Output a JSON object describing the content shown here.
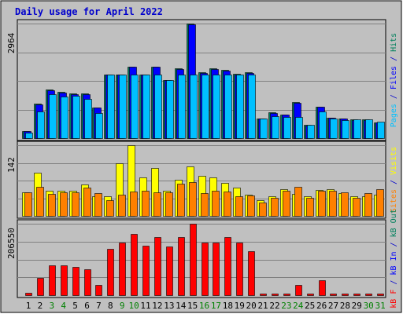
{
  "colors": {
    "frame_bg": "#C0C0C0",
    "panel_bg": "#C0C0C0",
    "grid": "#808080",
    "title": "#0000CC",
    "hits": "#00805C",
    "files": "#0000FF",
    "pages": "#00C0FF",
    "visits": "#FFFF00",
    "sites": "#FF8000",
    "kb_f": "#FF0000",
    "kb_in": "#0000FF",
    "kb_out": "#00805C",
    "day_weekday": "#000000",
    "day_weekend": "#008000"
  },
  "chart_data": {
    "type": "bar",
    "title": "Daily usage for April 2022",
    "x": {
      "values": [
        1,
        2,
        3,
        4,
        5,
        6,
        7,
        8,
        9,
        10,
        11,
        12,
        13,
        14,
        15,
        16,
        17,
        18,
        19,
        20,
        21,
        22,
        23,
        24,
        25,
        26,
        27,
        28,
        29,
        30,
        31
      ],
      "weekend": [
        false,
        false,
        true,
        true,
        false,
        false,
        false,
        false,
        true,
        true,
        false,
        false,
        false,
        false,
        false,
        true,
        true,
        false,
        false,
        false,
        false,
        false,
        true,
        true,
        false,
        false,
        false,
        false,
        false,
        true,
        true
      ]
    },
    "panels": [
      {
        "name": "usage",
        "ymax_label": "2964",
        "ymax": 2964,
        "right_labels": [
          {
            "text": "Pages",
            "color_key": "pages"
          },
          {
            "text": " / ",
            "color_key": "title"
          },
          {
            "text": "Files",
            "color_key": "files"
          },
          {
            "text": " / ",
            "color_key": "title"
          },
          {
            "text": "Hits",
            "color_key": "hits"
          }
        ],
        "series": [
          {
            "name": "Hits",
            "color_key": "hits",
            "values": [
              185,
              900,
              1250,
              1200,
              1150,
              1150,
              800,
              1650,
              1650,
              1850,
              1650,
              1850,
              1500,
              1800,
              2964,
              1700,
              1800,
              1760,
              1660,
              1700,
              510,
              660,
              610,
              930,
              340,
              820,
              530,
              510,
              480,
              480,
              410
            ]
          },
          {
            "name": "Files",
            "color_key": "files",
            "values": [
              180,
              880,
              1240,
              1180,
              1140,
              1140,
              790,
              1640,
              1640,
              1840,
              1640,
              1840,
              1500,
              1790,
              2950,
              1690,
              1790,
              1750,
              1650,
              1690,
              500,
              650,
              600,
              910,
              330,
              810,
              520,
              500,
              470,
              470,
              400
            ]
          },
          {
            "name": "Pages",
            "color_key": "pages",
            "values": [
              135,
              700,
              1130,
              1080,
              1090,
              1020,
              640,
              1640,
              1640,
              1640,
              1640,
              1640,
              1500,
              1640,
              1640,
              1640,
              1640,
              1640,
              1640,
              1640,
              500,
              570,
              550,
              540,
              340,
              690,
              500,
              470,
              480,
              480,
              420
            ]
          }
        ]
      },
      {
        "name": "visitors",
        "ymax_label": "142",
        "ymax": 142,
        "right_labels": [
          {
            "text": "Sites",
            "color_key": "sites"
          },
          {
            "text": " / ",
            "color_key": "title"
          },
          {
            "text": "Visits",
            "color_key": "visits"
          }
        ],
        "series": [
          {
            "name": "Visits",
            "color_key": "visits",
            "values": [
              47,
              87,
              50,
              50,
              50,
              63,
              40,
              40,
              105,
              142,
              78,
              96,
              50,
              73,
              99,
              80,
              78,
              66,
              57,
              43,
              32,
              40,
              53,
              44,
              40,
              52,
              54,
              45,
              39,
              40,
              42
            ]
          },
          {
            "name": "Sites",
            "color_key": "sites",
            "values": [
              47,
              58,
              44,
              48,
              47,
              57,
              45,
              31,
              43,
              49,
              50,
              48,
              47,
              64,
              68,
              46,
              50,
              49,
              40,
              41,
              27,
              36,
              51,
              58,
              37,
              50,
              50,
              47,
              37,
              45,
              53
            ]
          }
        ]
      },
      {
        "name": "traffic",
        "ymax_label": "206550",
        "ymax": 206550,
        "right_labels": [
          {
            "text": "kB F",
            "color_key": "kb_f"
          },
          {
            "text": " / ",
            "color_key": "title"
          },
          {
            "text": "kB In",
            "color_key": "kb_in"
          },
          {
            "text": " / ",
            "color_key": "title"
          },
          {
            "text": "kB Out",
            "color_key": "kb_out"
          }
        ],
        "series": [
          {
            "name": "kB F",
            "color_key": "kb_f",
            "values": [
              6000,
              49000,
              86000,
              86000,
              82000,
              74000,
              29000,
              134000,
              151000,
              177000,
              142000,
              167000,
              141000,
              167000,
              206550,
              151000,
              151000,
              167000,
              151000,
              128000,
              4500,
              4500,
              4500,
              29000,
              4500,
              44000,
              4500,
              4500,
              4500,
              4500,
              4500
            ]
          }
        ]
      }
    ]
  }
}
